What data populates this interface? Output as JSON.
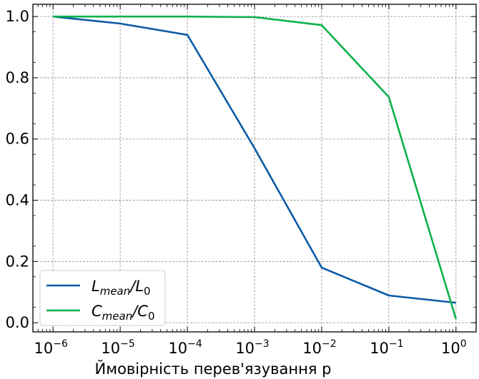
{
  "chart_data": {
    "type": "line",
    "xscale": "log",
    "x": [
      1e-06,
      1e-05,
      0.0001,
      0.001,
      0.01,
      0.1,
      1
    ],
    "x_tick_labels": [
      {
        "base": "10",
        "exp": "−6"
      },
      {
        "base": "10",
        "exp": "−5"
      },
      {
        "base": "10",
        "exp": "−4"
      },
      {
        "base": "10",
        "exp": "−3"
      },
      {
        "base": "10",
        "exp": "−2"
      },
      {
        "base": "10",
        "exp": "−1"
      },
      {
        "base": "10",
        "exp": "0"
      }
    ],
    "y_ticks": [
      0.0,
      0.2,
      0.4,
      0.6,
      0.8,
      1.0
    ],
    "y_tick_labels": [
      "0.0",
      "0.2",
      "0.4",
      "0.6",
      "0.8",
      "1.0"
    ],
    "ylim": [
      -0.03,
      1.04
    ],
    "xlabel": "Ймовірність перев'язування p",
    "grid": true,
    "legend_position": "bottom-left",
    "series": [
      {
        "name": {
          "base": "L",
          "sub": "mean",
          "sep": "/L",
          "sub2": "0"
        },
        "color": "#0b5aa6",
        "values": [
          1.0,
          0.977,
          0.94,
          0.57,
          0.18,
          0.089,
          0.065
        ]
      },
      {
        "name": {
          "base": "C",
          "sub": "mean",
          "sep": "/C",
          "sub2": "0"
        },
        "color": "#0db14b",
        "values": [
          1.0,
          1.0,
          1.0,
          0.998,
          0.972,
          0.737,
          0.012
        ]
      }
    ]
  }
}
